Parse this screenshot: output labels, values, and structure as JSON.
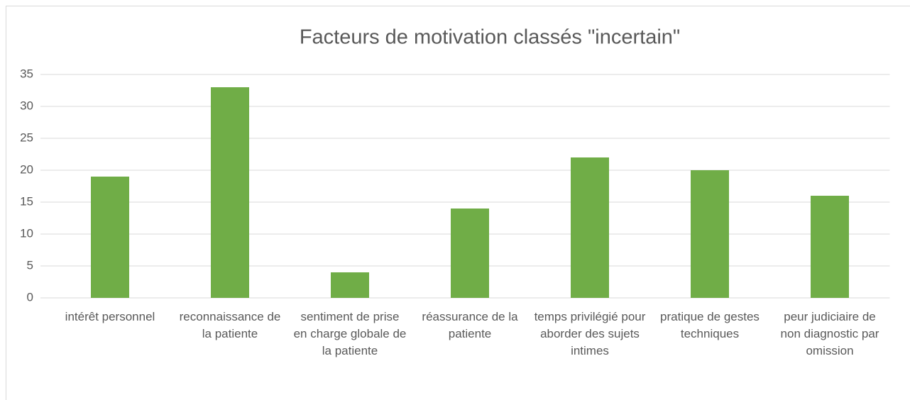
{
  "chart_data": {
    "type": "bar",
    "title": "Facteurs de motivation classés \"incertain\"",
    "categories": [
      "intérêt personnel",
      "reconnaissance de la patiente",
      "sentiment de prise en charge globale de la patiente",
      "réassurance de la patiente",
      "temps privilégié pour aborder des sujets intimes",
      "pratique de gestes techniques",
      "peur judiciaire de non diagnostic par omission"
    ],
    "values": [
      19,
      33,
      4,
      14,
      22,
      20,
      16
    ],
    "color": "#70ad47",
    "ylim": [
      0,
      35
    ],
    "yticks": [
      0,
      5,
      10,
      15,
      20,
      25,
      30,
      35
    ],
    "grid": true
  }
}
